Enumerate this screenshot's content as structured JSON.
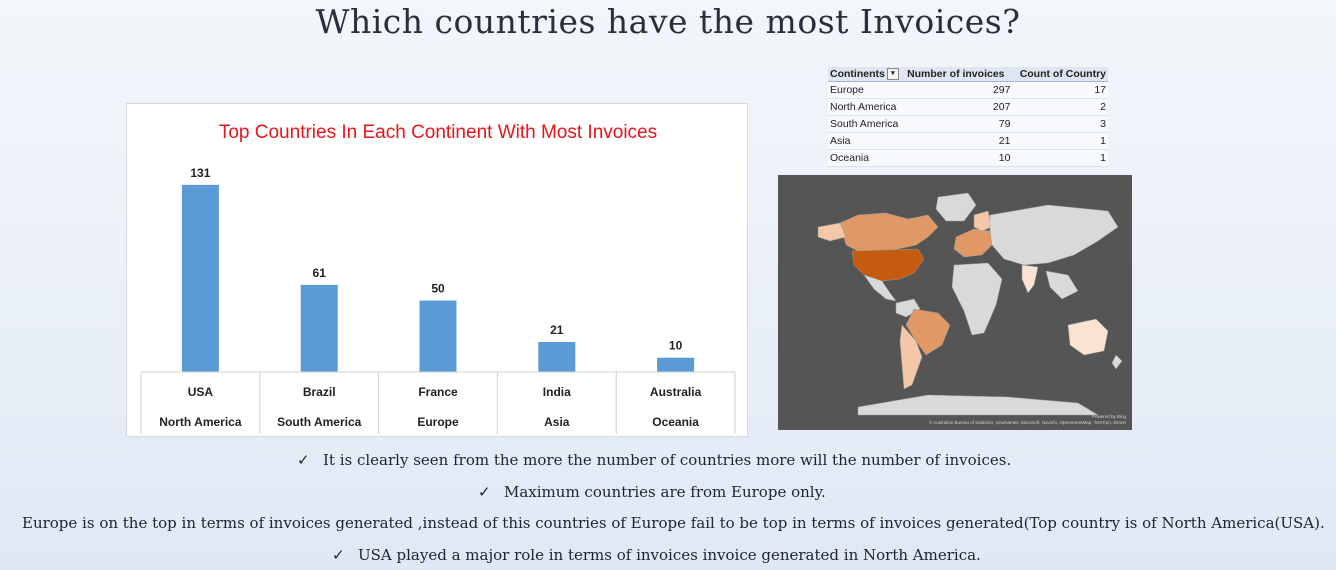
{
  "page": {
    "title": "Which countries have the most Invoices?"
  },
  "chart_data": {
    "type": "bar",
    "title": "Top Countries In Each Continent With Most Invoices",
    "categories": [
      "USA",
      "Brazil",
      "France",
      "India",
      "Australia"
    ],
    "continents": [
      "North America",
      "South America",
      "Europe",
      "Asia",
      "Oceania"
    ],
    "values": [
      131,
      61,
      50,
      21,
      10
    ],
    "ylim": [
      0,
      140
    ],
    "grid": false,
    "legend": "none",
    "bar_color": "#5b9bd5",
    "title_color": "#e8141c"
  },
  "table": {
    "headers": [
      "Continents",
      "Number of invoices",
      "Count of Country"
    ],
    "rows": [
      [
        "Europe",
        "297",
        "17"
      ],
      [
        "North America",
        "207",
        "2"
      ],
      [
        "South America",
        "79",
        "3"
      ],
      [
        "Asia",
        "21",
        "1"
      ],
      [
        "Oceania",
        "10",
        "1"
      ]
    ]
  },
  "map": {
    "powered": "Powered by Bing",
    "credit": "© Australian Bureau of Statistics, GeoNames, Microsoft, Navinfo, OpenStreetMap, TomTom, Zenrin",
    "background": "#555555",
    "land_color": "#d9d9d9",
    "highlight_colors": [
      "#c55a11",
      "#e19867",
      "#f3c7a7",
      "#fae3d2"
    ]
  },
  "bullets": [
    "It is clearly seen from the more the number of countries more will the number of invoices.",
    "Maximum countries are from Europe only.",
    "Europe is on the top in terms of invoices generated ,instead of this countries of Europe fail to be top in terms of invoices generated(Top country is of North America(USA).",
    "USA played a major role in terms of invoices invoice generated in North America."
  ],
  "check_glyph": "✓"
}
